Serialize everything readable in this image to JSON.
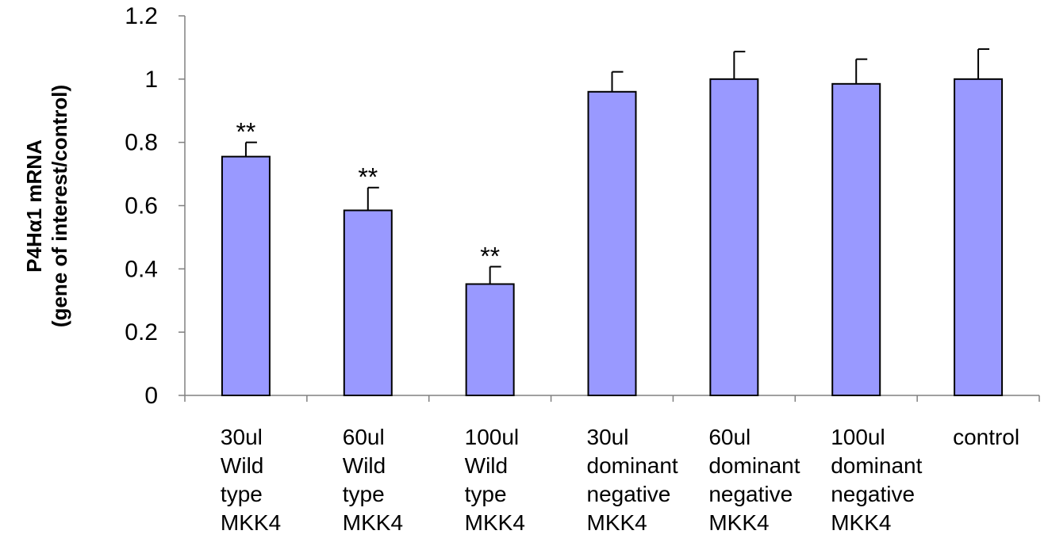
{
  "chart_data": {
    "type": "bar",
    "title": "",
    "xlabel": "",
    "ylabel_lines": [
      "P4Hα1 mRNA",
      "(gene of interest/control)"
    ],
    "ylim": [
      0,
      1.2
    ],
    "yticks": [
      "0",
      "0.2",
      "0.4",
      "0.6",
      "0.8",
      "1",
      "1.2"
    ],
    "ytick_values": [
      0,
      0.2,
      0.4,
      0.6,
      0.8,
      1,
      1.2
    ],
    "grid": false,
    "legend": "none",
    "categories": [
      [
        "30ul",
        "Wild",
        "type",
        "MKK4"
      ],
      [
        "60ul",
        "Wild",
        "type",
        "MKK4"
      ],
      [
        "100ul",
        "Wild",
        "type",
        "MKK4"
      ],
      [
        "30ul",
        "dominant",
        "negative",
        "MKK4"
      ],
      [
        "60ul",
        "dominant",
        "negative",
        "MKK4"
      ],
      [
        "100ul",
        "dominant",
        "negative",
        "MKK4"
      ],
      [
        "control"
      ]
    ],
    "values": [
      0.755,
      0.585,
      0.352,
      0.96,
      1.0,
      0.985,
      1.0
    ],
    "errors": [
      0.045,
      0.072,
      0.055,
      0.063,
      0.087,
      0.078,
      0.095
    ],
    "annotations": [
      "**",
      "**",
      "**",
      "",
      "",
      "",
      ""
    ],
    "bar_color": "#9999ff",
    "edge_color": "#000000"
  }
}
